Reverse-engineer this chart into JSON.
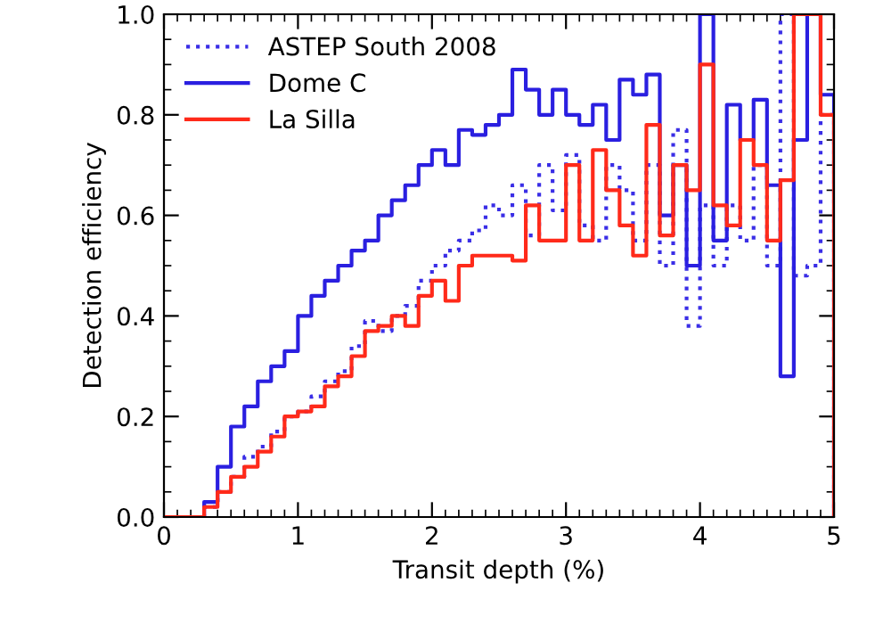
{
  "chart_data": {
    "type": "step",
    "xlabel": "Transit depth (%)",
    "ylabel": "Detection efficiency",
    "x": [
      0.0,
      0.1,
      0.2,
      0.3,
      0.4,
      0.5,
      0.6,
      0.7,
      0.8,
      0.9,
      1.0,
      1.1,
      1.2,
      1.3,
      1.4,
      1.5,
      1.6,
      1.7,
      1.8,
      1.9,
      2.0,
      2.1,
      2.2,
      2.3,
      2.4,
      2.5,
      2.6,
      2.7,
      2.8,
      2.9,
      3.0,
      3.1,
      3.2,
      3.3,
      3.4,
      3.5,
      3.6,
      3.7,
      3.8,
      3.9,
      4.0,
      4.1,
      4.2,
      4.3,
      4.4,
      4.5,
      4.6,
      4.7,
      4.8,
      4.9,
      5.0
    ],
    "series": [
      {
        "name": "ASTEP South 2008",
        "color": "#3a2ee6",
        "line_style": "dotted",
        "values": [
          0,
          0,
          0,
          0.02,
          0.05,
          0.08,
          0.12,
          0.14,
          0.17,
          0.2,
          0.21,
          0.24,
          0.27,
          0.29,
          0.34,
          0.39,
          0.37,
          0.4,
          0.42,
          0.47,
          0.5,
          0.53,
          0.55,
          0.57,
          0.62,
          0.6,
          0.66,
          0.56,
          0.7,
          0.61,
          0.72,
          0.58,
          0.55,
          0.7,
          0.65,
          0.55,
          0.7,
          0.5,
          0.77,
          0.38,
          0.62,
          0.5,
          0.62,
          0.55,
          0.7,
          0.5,
          1.0,
          0.48,
          0.5,
          0.8,
          0
        ]
      },
      {
        "name": "Dome C",
        "color": "#2a1fe0",
        "line_style": "solid",
        "values": [
          0,
          0,
          0,
          0.03,
          0.1,
          0.18,
          0.22,
          0.27,
          0.3,
          0.33,
          0.4,
          0.44,
          0.47,
          0.5,
          0.53,
          0.55,
          0.6,
          0.63,
          0.66,
          0.7,
          0.73,
          0.7,
          0.77,
          0.76,
          0.78,
          0.8,
          0.89,
          0.85,
          0.8,
          0.85,
          0.8,
          0.78,
          0.82,
          0.75,
          0.87,
          0.84,
          0.88,
          0.6,
          0.7,
          0.5,
          1.0,
          0.55,
          0.82,
          0.75,
          0.83,
          0.66,
          0.28,
          0.75,
          1.0,
          0.84,
          0
        ]
      },
      {
        "name": "La Silla",
        "color": "#ff2a1a",
        "line_style": "solid",
        "values": [
          0,
          0,
          0,
          0.02,
          0.05,
          0.08,
          0.1,
          0.13,
          0.16,
          0.2,
          0.21,
          0.22,
          0.26,
          0.28,
          0.32,
          0.37,
          0.38,
          0.4,
          0.38,
          0.44,
          0.47,
          0.43,
          0.5,
          0.52,
          0.52,
          0.52,
          0.51,
          0.62,
          0.55,
          0.55,
          0.7,
          0.55,
          0.73,
          0.65,
          0.58,
          0.52,
          0.78,
          0.56,
          0.7,
          0.65,
          0.9,
          0.62,
          0.58,
          0.75,
          0.7,
          0.55,
          0.67,
          1.0,
          1.0,
          0.8,
          0
        ]
      }
    ],
    "xlim": [
      0,
      5
    ],
    "ylim": [
      0,
      1.0
    ],
    "xticks": [
      0,
      1,
      2,
      3,
      4,
      5
    ],
    "yticks": [
      {
        "value": 0,
        "label": "0.0"
      },
      {
        "value": 0.2,
        "label": "0.2"
      },
      {
        "value": 0.4,
        "label": "0.4"
      },
      {
        "value": 0.6,
        "label": "0.6"
      },
      {
        "value": 0.8,
        "label": "0.8"
      },
      {
        "value": 1.0,
        "label": "1.0"
      }
    ],
    "legend": "top left",
    "grid": false
  }
}
